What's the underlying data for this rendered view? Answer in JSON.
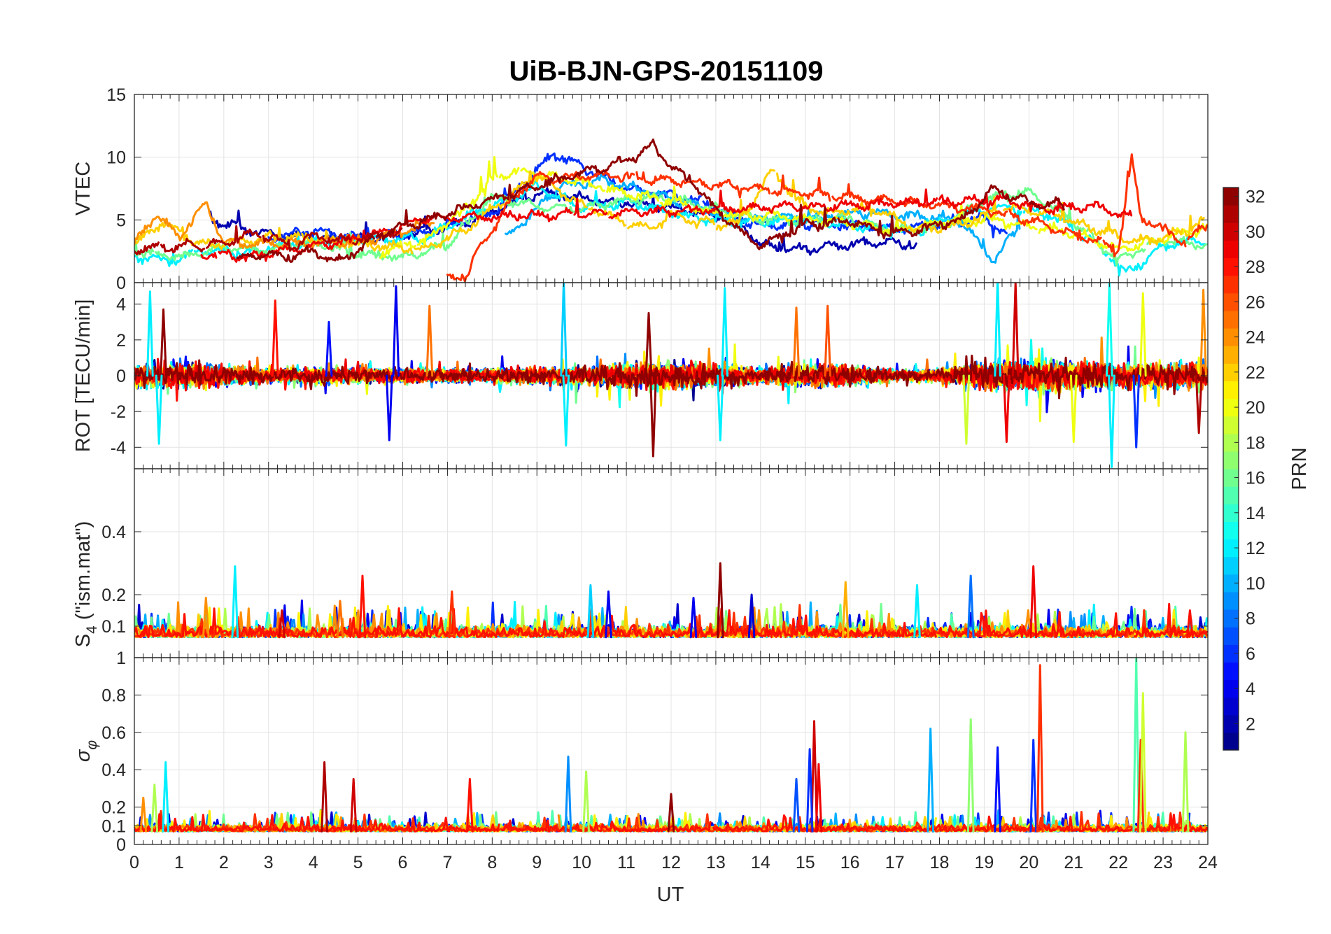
{
  "chart_data": {
    "type": "line",
    "title": "UiB-BJN-GPS-20151109",
    "xlabel": "UT",
    "xlim": [
      0,
      24
    ],
    "xticks": [
      "0",
      "1",
      "2",
      "3",
      "4",
      "5",
      "6",
      "7",
      "8",
      "9",
      "10",
      "11",
      "12",
      "13",
      "14",
      "15",
      "16",
      "17",
      "18",
      "19",
      "20",
      "21",
      "22",
      "23",
      "24"
    ],
    "panels": [
      {
        "id": "vtec",
        "ylabel": "VTEC",
        "ylim": [
          0,
          15
        ],
        "yticks": [
          "0",
          "5",
          "10",
          "15"
        ],
        "series": [
          {
            "prn": 2,
            "x": [
              1.7,
              3.0,
              4.5,
              6.0,
              7.5,
              9.0,
              10.5,
              12.0,
              13.5,
              14.0,
              15.0,
              16.0,
              17.0,
              17.5
            ],
            "y": [
              5.0,
              3.9,
              3.4,
              3.8,
              4.8,
              7.2,
              6.5,
              6.0,
              5.0,
              3.0,
              2.6,
              3.1,
              3.2,
              2.9
            ]
          },
          {
            "prn": 6,
            "x": [
              3.0,
              4.0,
              5.0,
              6.5,
              8.0,
              9.4,
              11.0,
              12.5,
              14.0,
              15.5,
              17.0,
              18.0,
              19.0,
              19.5
            ],
            "y": [
              3.5,
              4.2,
              3.6,
              4.0,
              5.5,
              10.3,
              7.5,
              6.6,
              4.5,
              4.8,
              4.2,
              4.6,
              5.2,
              4.0
            ]
          },
          {
            "prn": 10,
            "x": [
              8.3,
              8.8,
              9.5,
              10.5,
              11.5,
              12.5,
              13.5,
              15.0,
              16.5,
              17.5,
              18.5,
              19.2,
              19.8
            ],
            "y": [
              3.5,
              5.2,
              7.6,
              8.2,
              7.2,
              6.2,
              5.1,
              5.2,
              5.6,
              5.3,
              4.8,
              1.8,
              4.5
            ]
          },
          {
            "prn": 12,
            "x": [
              0.0,
              0.8,
              1.5,
              2.5,
              3.5,
              4.5,
              5.5,
              6.5,
              8.0,
              9.0,
              10.0,
              11.0,
              12.5,
              13.5,
              15.0,
              16.5,
              17.5,
              18.5,
              19.5,
              20.5,
              21.5,
              22.2,
              23.0,
              24.0
            ],
            "y": [
              2.2,
              1.7,
              2.6,
              2.4,
              3.1,
              3.3,
              3.5,
              3.6,
              6.2,
              7.6,
              6.0,
              6.4,
              5.2,
              4.8,
              5.0,
              4.4,
              4.0,
              5.5,
              6.0,
              5.4,
              3.1,
              0.7,
              3.0,
              3.4
            ]
          },
          {
            "prn": 16,
            "x": [
              0.0,
              1.0,
              2.0,
              3.0,
              4.0,
              5.0,
              6.0,
              7.0,
              8.0,
              9.0,
              10.0,
              11.0,
              12.0,
              13.0,
              14.0,
              15.0,
              16.0,
              17.0,
              18.0,
              19.0,
              20.0,
              21.0,
              22.0,
              23.0,
              24.0
            ],
            "y": [
              2.5,
              2.0,
              2.8,
              2.5,
              3.2,
              2.3,
              2.0,
              3.0,
              6.8,
              6.0,
              5.9,
              6.6,
              6.8,
              5.8,
              5.0,
              5.0,
              5.1,
              4.2,
              4.4,
              6.6,
              7.3,
              4.8,
              1.8,
              3.5,
              2.9
            ]
          },
          {
            "prn": 20,
            "x": [
              5.5,
              6.5,
              7.5,
              8.0,
              8.5,
              9.0,
              10.0,
              11.0,
              12.0,
              13.0,
              14.0,
              15.0,
              16.0,
              17.0,
              18.0,
              19.0,
              20.0,
              21.0,
              22.0,
              23.0,
              24.0
            ],
            "y": [
              2.4,
              3.4,
              6.2,
              8.3,
              8.9,
              8.7,
              8.0,
              7.1,
              6.5,
              5.5,
              5.4,
              5.1,
              4.8,
              4.1,
              4.8,
              5.1,
              4.5,
              3.9,
              2.7,
              3.5,
              4.4
            ]
          },
          {
            "prn": 22,
            "x": [
              0.0,
              0.6,
              1.5,
              2.5,
              3.5,
              6.5,
              7.5,
              9.0,
              10.0,
              11.0,
              11.5,
              12.0,
              12.8,
              13.5,
              14.3,
              14.8,
              15.5,
              16.5,
              17.5,
              18.5,
              19.5,
              20.5,
              21.5,
              22.5,
              23.5,
              24.0
            ],
            "y": [
              3.0,
              4.8,
              3.0,
              3.3,
              3.7,
              2.6,
              4.5,
              8.5,
              6.2,
              4.8,
              4.3,
              5.4,
              4.8,
              4.6,
              9.0,
              6.5,
              5.5,
              6.0,
              4.2,
              4.6,
              6.0,
              5.5,
              4.2,
              3.2,
              4.1,
              5.2
            ]
          },
          {
            "prn": 24,
            "x": [
              0.0,
              0.5,
              1.0,
              1.6,
              2.0,
              3.0,
              4.0,
              5.0,
              6.0,
              6.7
            ],
            "y": [
              3.0,
              5.5,
              3.6,
              6.3,
              3.3,
              3.0,
              3.2,
              3.2,
              4.0,
              5.0
            ]
          },
          {
            "prn": 27,
            "x": [
              7.0,
              7.5,
              7.55,
              8.5,
              9.0,
              9.5,
              10.0,
              10.5,
              19.0,
              20.0,
              21.0,
              22.0,
              22.3,
              22.5,
              23.5,
              24.0
            ],
            "y": [
              0.3,
              0.7,
              1.9,
              6.8,
              8.5,
              8.3,
              8.5,
              8.6,
              5.8,
              5.0,
              3.8,
              2.7,
              9.9,
              5.2,
              3.2,
              4.5
            ]
          },
          {
            "prn": 29,
            "x": [
              1.5,
              2.5,
              3.5,
              4.5,
              5.5,
              6.5,
              19.5,
              20.5,
              21.5,
              22.3
            ],
            "y": [
              2.3,
              2.0,
              2.6,
              3.2,
              3.9,
              5.1,
              6.6,
              5.8,
              6.1,
              5.2
            ]
          },
          {
            "prn": 31,
            "x": [
              0.0,
              1.0,
              2.0,
              2.5,
              3.0,
              3.5,
              4.0,
              4.5,
              5.0,
              5.5,
              6.0
            ],
            "y": [
              2.6,
              2.9,
              3.1,
              3.8,
              3.8,
              2.8,
              3.8,
              3.4,
              3.5,
              3.7,
              4.1
            ]
          },
          {
            "prn": 32,
            "x": [
              2.3,
              3.0,
              3.5,
              4.0,
              4.5,
              5.0,
              5.5,
              11.2,
              11.6,
              12.0,
              12.5,
              13.0,
              13.5,
              14.0,
              15.0,
              16.0,
              17.0,
              17.5,
              18.5,
              19.2,
              20.0,
              20.8
            ],
            "y": [
              1.8,
              2.3,
              1.9,
              2.6,
              1.6,
              2.6,
              3.9,
              10.0,
              11.0,
              9.2,
              8.0,
              5.8,
              4.2,
              3.0,
              4.6,
              4.9,
              3.8,
              4.2,
              5.0,
              7.5,
              6.3,
              6.2
            ]
          }
        ]
      },
      {
        "id": "rot",
        "ylabel": "ROT [TECU/min]",
        "ylim": [
          -5.2,
          5.2
        ],
        "yticks": [
          "-4",
          "-2",
          "0",
          "2",
          "4"
        ],
        "mode": "noise",
        "activity": {
          "x": [
            0,
            1,
            3,
            5,
            7,
            9,
            10,
            11,
            12,
            13,
            14,
            15,
            16,
            17,
            18,
            19,
            20,
            21,
            22,
            23,
            24
          ],
          "y": [
            1.0,
            1.1,
            0.7,
            0.7,
            0.6,
            0.7,
            0.8,
            1.1,
            1.2,
            1.0,
            0.7,
            1.0,
            0.9,
            0.5,
            0.6,
            1.3,
            1.4,
            1.2,
            1.1,
            1.1,
            1.2
          ]
        },
        "spikes": [
          {
            "x": 0.35,
            "y": 4.7,
            "prn": 12
          },
          {
            "x": 0.65,
            "y": 3.7,
            "prn": 32
          },
          {
            "x": 0.55,
            "y": -3.8,
            "prn": 12
          },
          {
            "x": 3.15,
            "y": 4.2,
            "prn": 28
          },
          {
            "x": 4.35,
            "y": 3.0,
            "prn": 5
          },
          {
            "x": 5.85,
            "y": 5.0,
            "prn": 4
          },
          {
            "x": 5.7,
            "y": -3.6,
            "prn": 4
          },
          {
            "x": 6.6,
            "y": 3.9,
            "prn": 25
          },
          {
            "x": 9.6,
            "y": 5.3,
            "prn": 11
          },
          {
            "x": 9.65,
            "y": -3.9,
            "prn": 12
          },
          {
            "x": 11.6,
            "y": -4.5,
            "prn": 32
          },
          {
            "x": 11.5,
            "y": 3.5,
            "prn": 32
          },
          {
            "x": 13.2,
            "y": 4.9,
            "prn": 12
          },
          {
            "x": 14.8,
            "y": 3.8,
            "prn": 25
          },
          {
            "x": 15.5,
            "y": 3.9,
            "prn": 26
          },
          {
            "x": 13.1,
            "y": -3.6,
            "prn": 12
          },
          {
            "x": 19.3,
            "y": 5.4,
            "prn": 12
          },
          {
            "x": 19.7,
            "y": 5.2,
            "prn": 30
          },
          {
            "x": 19.5,
            "y": -3.7,
            "prn": 29
          },
          {
            "x": 21.8,
            "y": 5.2,
            "prn": 13
          },
          {
            "x": 21.85,
            "y": -5.1,
            "prn": 12
          },
          {
            "x": 22.55,
            "y": 4.6,
            "prn": 20
          },
          {
            "x": 22.4,
            "y": -4.0,
            "prn": 6
          },
          {
            "x": 23.9,
            "y": 4.8,
            "prn": 24
          },
          {
            "x": 23.8,
            "y": -3.2,
            "prn": 31
          },
          {
            "x": 18.6,
            "y": -3.8,
            "prn": 19
          },
          {
            "x": 21.0,
            "y": -3.7,
            "prn": 20
          }
        ]
      },
      {
        "id": "s4",
        "ylabel": "S4 (\"ism.mat\")",
        "ylim": [
          0.0,
          0.6
        ],
        "yticks": [
          "0.1",
          "0.2",
          "0.4"
        ],
        "mode": "index",
        "base": 0.065,
        "spread": 0.03,
        "spikes": [
          {
            "x": 2.25,
            "y": 0.29,
            "prn": 12
          },
          {
            "x": 1.6,
            "y": 0.19,
            "prn": 24
          },
          {
            "x": 5.1,
            "y": 0.26,
            "prn": 28
          },
          {
            "x": 4.6,
            "y": 0.18,
            "prn": 25
          },
          {
            "x": 7.1,
            "y": 0.21,
            "prn": 27
          },
          {
            "x": 10.2,
            "y": 0.23,
            "prn": 11
          },
          {
            "x": 10.6,
            "y": 0.21,
            "prn": 4
          },
          {
            "x": 13.1,
            "y": 0.3,
            "prn": 32
          },
          {
            "x": 13.8,
            "y": 0.2,
            "prn": 3
          },
          {
            "x": 15.9,
            "y": 0.24,
            "prn": 23
          },
          {
            "x": 17.5,
            "y": 0.23,
            "prn": 12
          },
          {
            "x": 18.7,
            "y": 0.26,
            "prn": 8
          },
          {
            "x": 20.1,
            "y": 0.29,
            "prn": 29
          },
          {
            "x": 23.6,
            "y": 0.15,
            "prn": 28
          },
          {
            "x": 3.3,
            "y": 0.15,
            "prn": 30
          },
          {
            "x": 12.5,
            "y": 0.19,
            "prn": 4
          }
        ]
      },
      {
        "id": "sigphi",
        "ylabel": "σφ",
        "ylim": [
          0.0,
          1.0
        ],
        "yticks": [
          "0",
          "0.1",
          "0.2",
          "0.4",
          "0.6",
          "0.8",
          "1"
        ],
        "mode": "index",
        "base": 0.07,
        "spread": 0.03,
        "spikes": [
          {
            "x": 0.7,
            "y": 0.44,
            "prn": 12
          },
          {
            "x": 0.45,
            "y": 0.32,
            "prn": 18
          },
          {
            "x": 0.2,
            "y": 0.25,
            "prn": 24
          },
          {
            "x": 4.25,
            "y": 0.44,
            "prn": 31
          },
          {
            "x": 4.9,
            "y": 0.35,
            "prn": 30
          },
          {
            "x": 7.5,
            "y": 0.35,
            "prn": 28
          },
          {
            "x": 9.7,
            "y": 0.47,
            "prn": 9
          },
          {
            "x": 10.1,
            "y": 0.39,
            "prn": 18
          },
          {
            "x": 15.2,
            "y": 0.66,
            "prn": 30
          },
          {
            "x": 15.1,
            "y": 0.51,
            "prn": 6
          },
          {
            "x": 14.8,
            "y": 0.35,
            "prn": 7
          },
          {
            "x": 17.8,
            "y": 0.62,
            "prn": 10
          },
          {
            "x": 18.7,
            "y": 0.67,
            "prn": 17
          },
          {
            "x": 19.3,
            "y": 0.52,
            "prn": 5
          },
          {
            "x": 20.1,
            "y": 0.56,
            "prn": 6
          },
          {
            "x": 20.25,
            "y": 0.96,
            "prn": 27
          },
          {
            "x": 22.4,
            "y": 1.0,
            "prn": 15
          },
          {
            "x": 22.5,
            "y": 0.56,
            "prn": 27
          },
          {
            "x": 22.55,
            "y": 0.81,
            "prn": 19
          },
          {
            "x": 23.5,
            "y": 0.6,
            "prn": 18
          },
          {
            "x": 12.0,
            "y": 0.27,
            "prn": 32
          },
          {
            "x": 15.3,
            "y": 0.43,
            "prn": 29
          }
        ]
      }
    ],
    "colorbar": {
      "label": "PRN",
      "range": [
        1,
        32
      ],
      "ticks": [
        "2",
        "4",
        "6",
        "8",
        "10",
        "12",
        "14",
        "16",
        "18",
        "20",
        "22",
        "24",
        "26",
        "28",
        "30",
        "32"
      ],
      "colormap": "jet"
    }
  }
}
